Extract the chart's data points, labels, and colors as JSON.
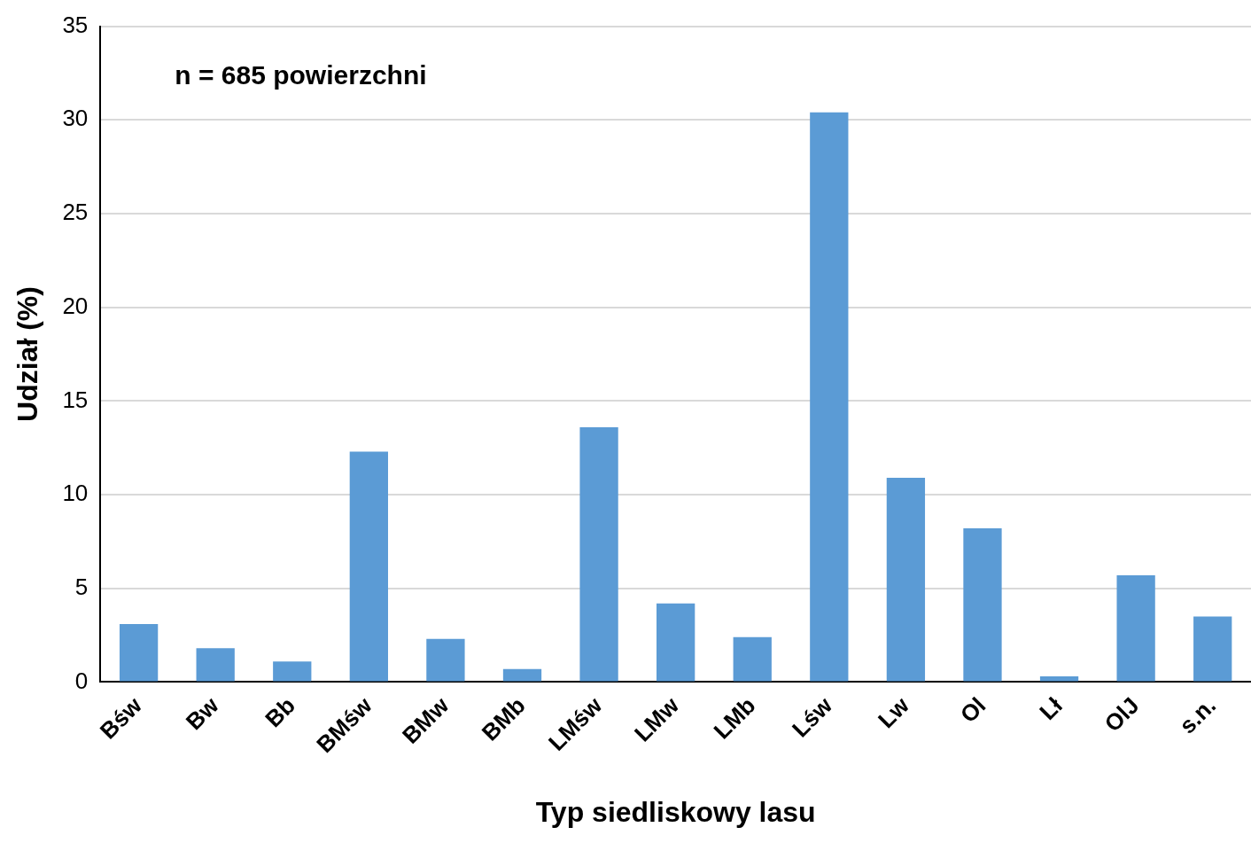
{
  "chart_data": {
    "type": "bar",
    "xlabel": "Typ siedliskowy lasu",
    "ylabel": "Udział (%)",
    "annotations": [
      "n = 685 powierzchni"
    ],
    "categories": [
      "Bśw",
      "Bw",
      "Bb",
      "BMśw",
      "BMw",
      "BMb",
      "LMśw",
      "LMw",
      "LMb",
      "Lśw",
      "Lw",
      "Ol",
      "Lł",
      "OlJ",
      "s.n."
    ],
    "values": [
      3.1,
      1.8,
      1.1,
      12.3,
      2.3,
      0.7,
      13.6,
      4.2,
      2.4,
      30.4,
      10.9,
      8.2,
      0.3,
      5.7,
      3.5
    ],
    "color": "#5b9bd5",
    "ylim": [
      0,
      35
    ],
    "yticks": [
      0,
      5,
      10,
      15,
      20,
      25,
      30,
      35
    ],
    "grid": "y",
    "legend": false
  }
}
